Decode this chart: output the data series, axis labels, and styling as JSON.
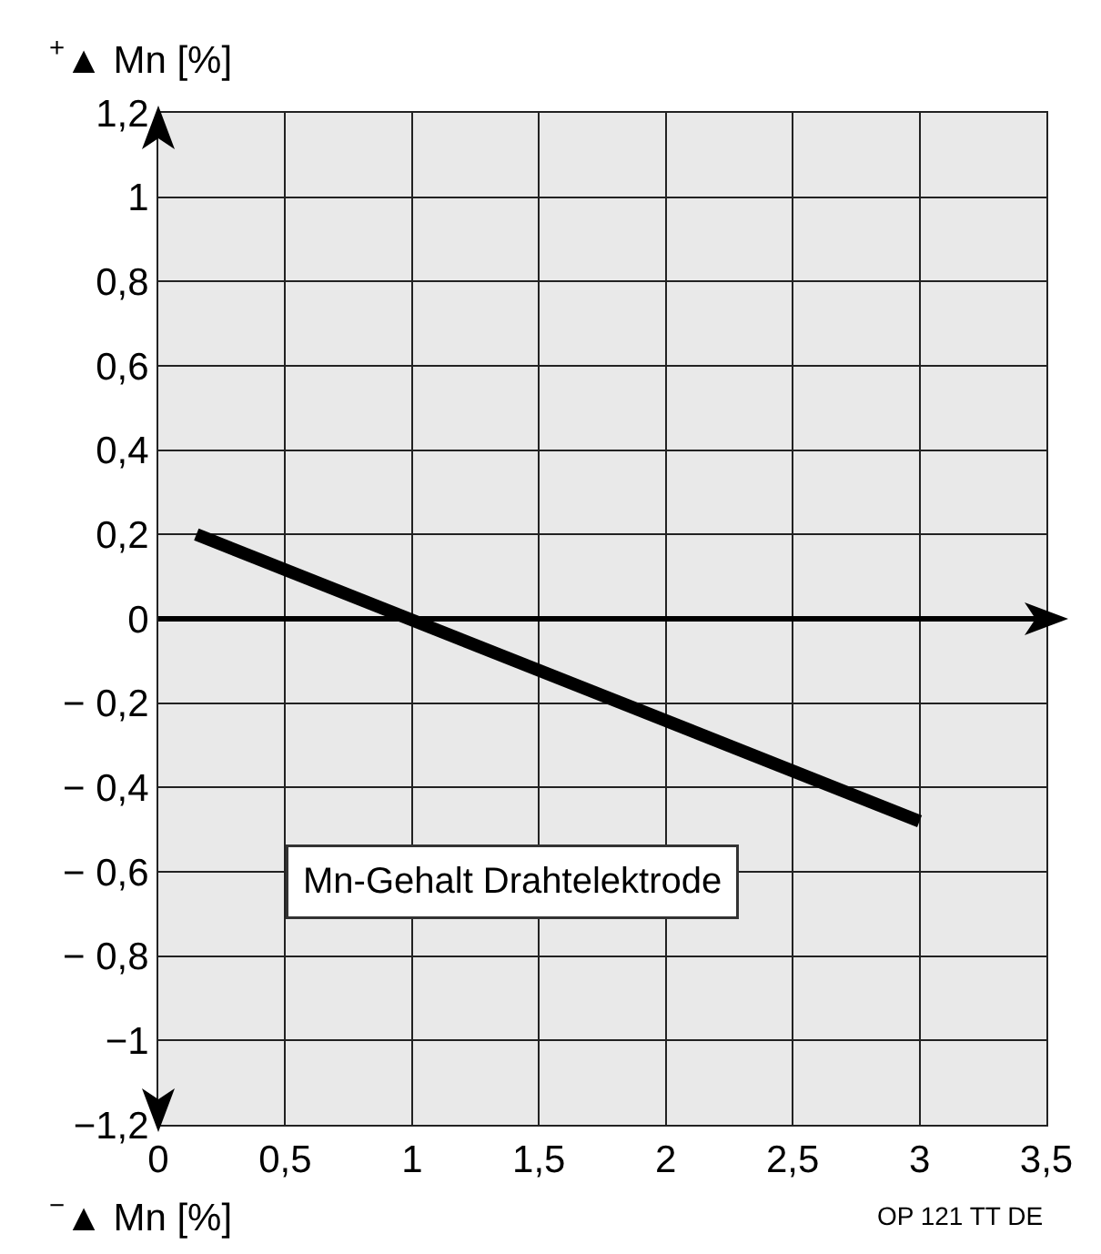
{
  "chart_data": {
    "type": "line",
    "xlabel": "$^{−}$▲ Mn [%]",
    "ylabel": "$^{+}$▲ Mn [%]",
    "x": [
      0.15,
      3.0
    ],
    "series": [
      {
        "color": "#000000",
        "values": [
          0.2,
          -0.48
        ]
      }
    ],
    "xlim": [
      0,
      3.5
    ],
    "xticks": [
      0,
      {
        "value": 0.5,
        "label": "0,5"
      },
      1,
      {
        "value": 1.5,
        "label": "1,5"
      },
      2,
      {
        "value": 2.5,
        "label": "2,5"
      },
      3,
      {
        "value": 3.5,
        "label": "3,5"
      }
    ],
    "ylim": [
      -1.2,
      1.2
    ],
    "yticks": [
      {
        "value": -1.2,
        "label": "−1,2"
      },
      {
        "value": -1,
        "label": "−1"
      },
      {
        "value": -0.8,
        "label": "− 0,8"
      },
      {
        "value": -0.6,
        "label": "− 0,6"
      },
      {
        "value": -0.4,
        "label": "− 0,4"
      },
      {
        "value": -0.2,
        "label": "− 0,2"
      },
      0,
      {
        "value": 0.2,
        "label": "0,2"
      },
      {
        "value": 0.4,
        "label": "0,4"
      },
      {
        "value": 0.6,
        "label": "0,6"
      },
      {
        "value": 0.8,
        "label": "0,8"
      },
      1,
      {
        "value": 1.2,
        "label": "1,2"
      }
    ],
    "grid": true,
    "marker": "none",
    "line_style": "solid",
    "annotations": [
      "Mn-Gehalt Drahtelektrode",
      "OP 121 TT DE"
    ]
  }
}
